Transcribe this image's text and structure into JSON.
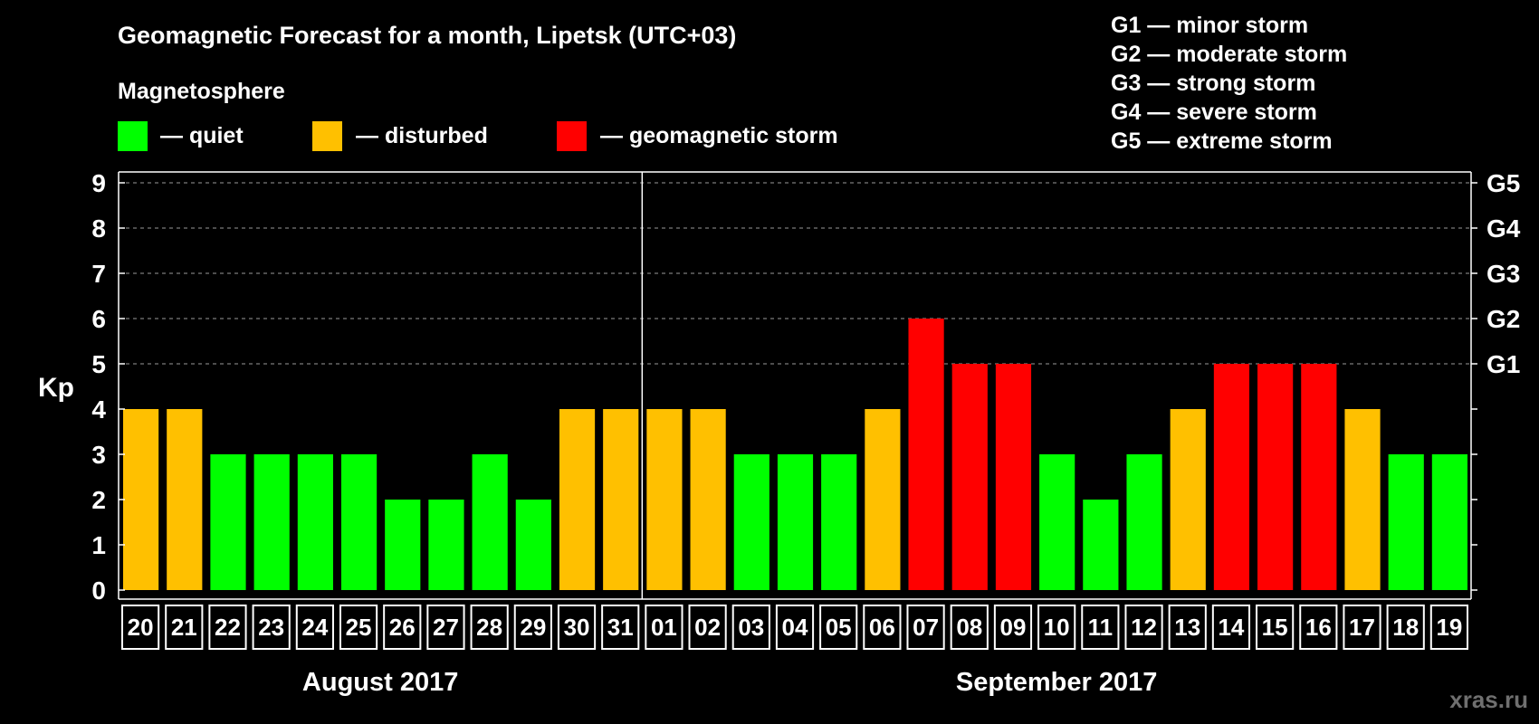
{
  "chart_data": {
    "type": "bar",
    "title": "Geomagnetic Forecast for a month, Lipetsk (UTC+03)",
    "ylabel": "Kp",
    "ylim": [
      0,
      9
    ],
    "yticks": [
      0,
      1,
      2,
      3,
      4,
      5,
      6,
      7,
      8,
      9
    ],
    "right_axis": [
      {
        "kp": 5,
        "label": "G1"
      },
      {
        "kp": 6,
        "label": "G2"
      },
      {
        "kp": 7,
        "label": "G3"
      },
      {
        "kp": 8,
        "label": "G4"
      },
      {
        "kp": 9,
        "label": "G5"
      }
    ],
    "categories": [
      "20",
      "21",
      "22",
      "23",
      "24",
      "25",
      "26",
      "27",
      "28",
      "29",
      "30",
      "31",
      "01",
      "02",
      "03",
      "04",
      "05",
      "06",
      "07",
      "08",
      "09",
      "10",
      "11",
      "12",
      "13",
      "14",
      "15",
      "16",
      "17",
      "18",
      "19"
    ],
    "values": [
      4,
      4,
      3,
      3,
      3,
      3,
      2,
      2,
      3,
      2,
      4,
      4,
      4,
      4,
      3,
      3,
      3,
      4,
      6,
      5,
      5,
      3,
      2,
      3,
      4,
      5,
      5,
      5,
      4,
      3,
      3
    ],
    "months": [
      {
        "label": "August 2017",
        "start": 0,
        "end": 11
      },
      {
        "label": "September 2017",
        "start": 12,
        "end": 30
      }
    ]
  },
  "legend": {
    "heading": "Magnetosphere",
    "items": [
      {
        "label": "— quiet",
        "color": "#00ff00"
      },
      {
        "label": "— disturbed",
        "color": "#ffc000"
      },
      {
        "label": "— geomagnetic storm",
        "color": "#ff0000"
      }
    ]
  },
  "storm_scale": [
    "G1 — minor storm",
    "G2 — moderate storm",
    "G3 — strong storm",
    "G4 — severe storm",
    "G5 — extreme storm"
  ],
  "watermark": "xras.ru",
  "colors": {
    "quiet": "#00ff00",
    "disturbed": "#ffc000",
    "storm": "#ff0000"
  }
}
